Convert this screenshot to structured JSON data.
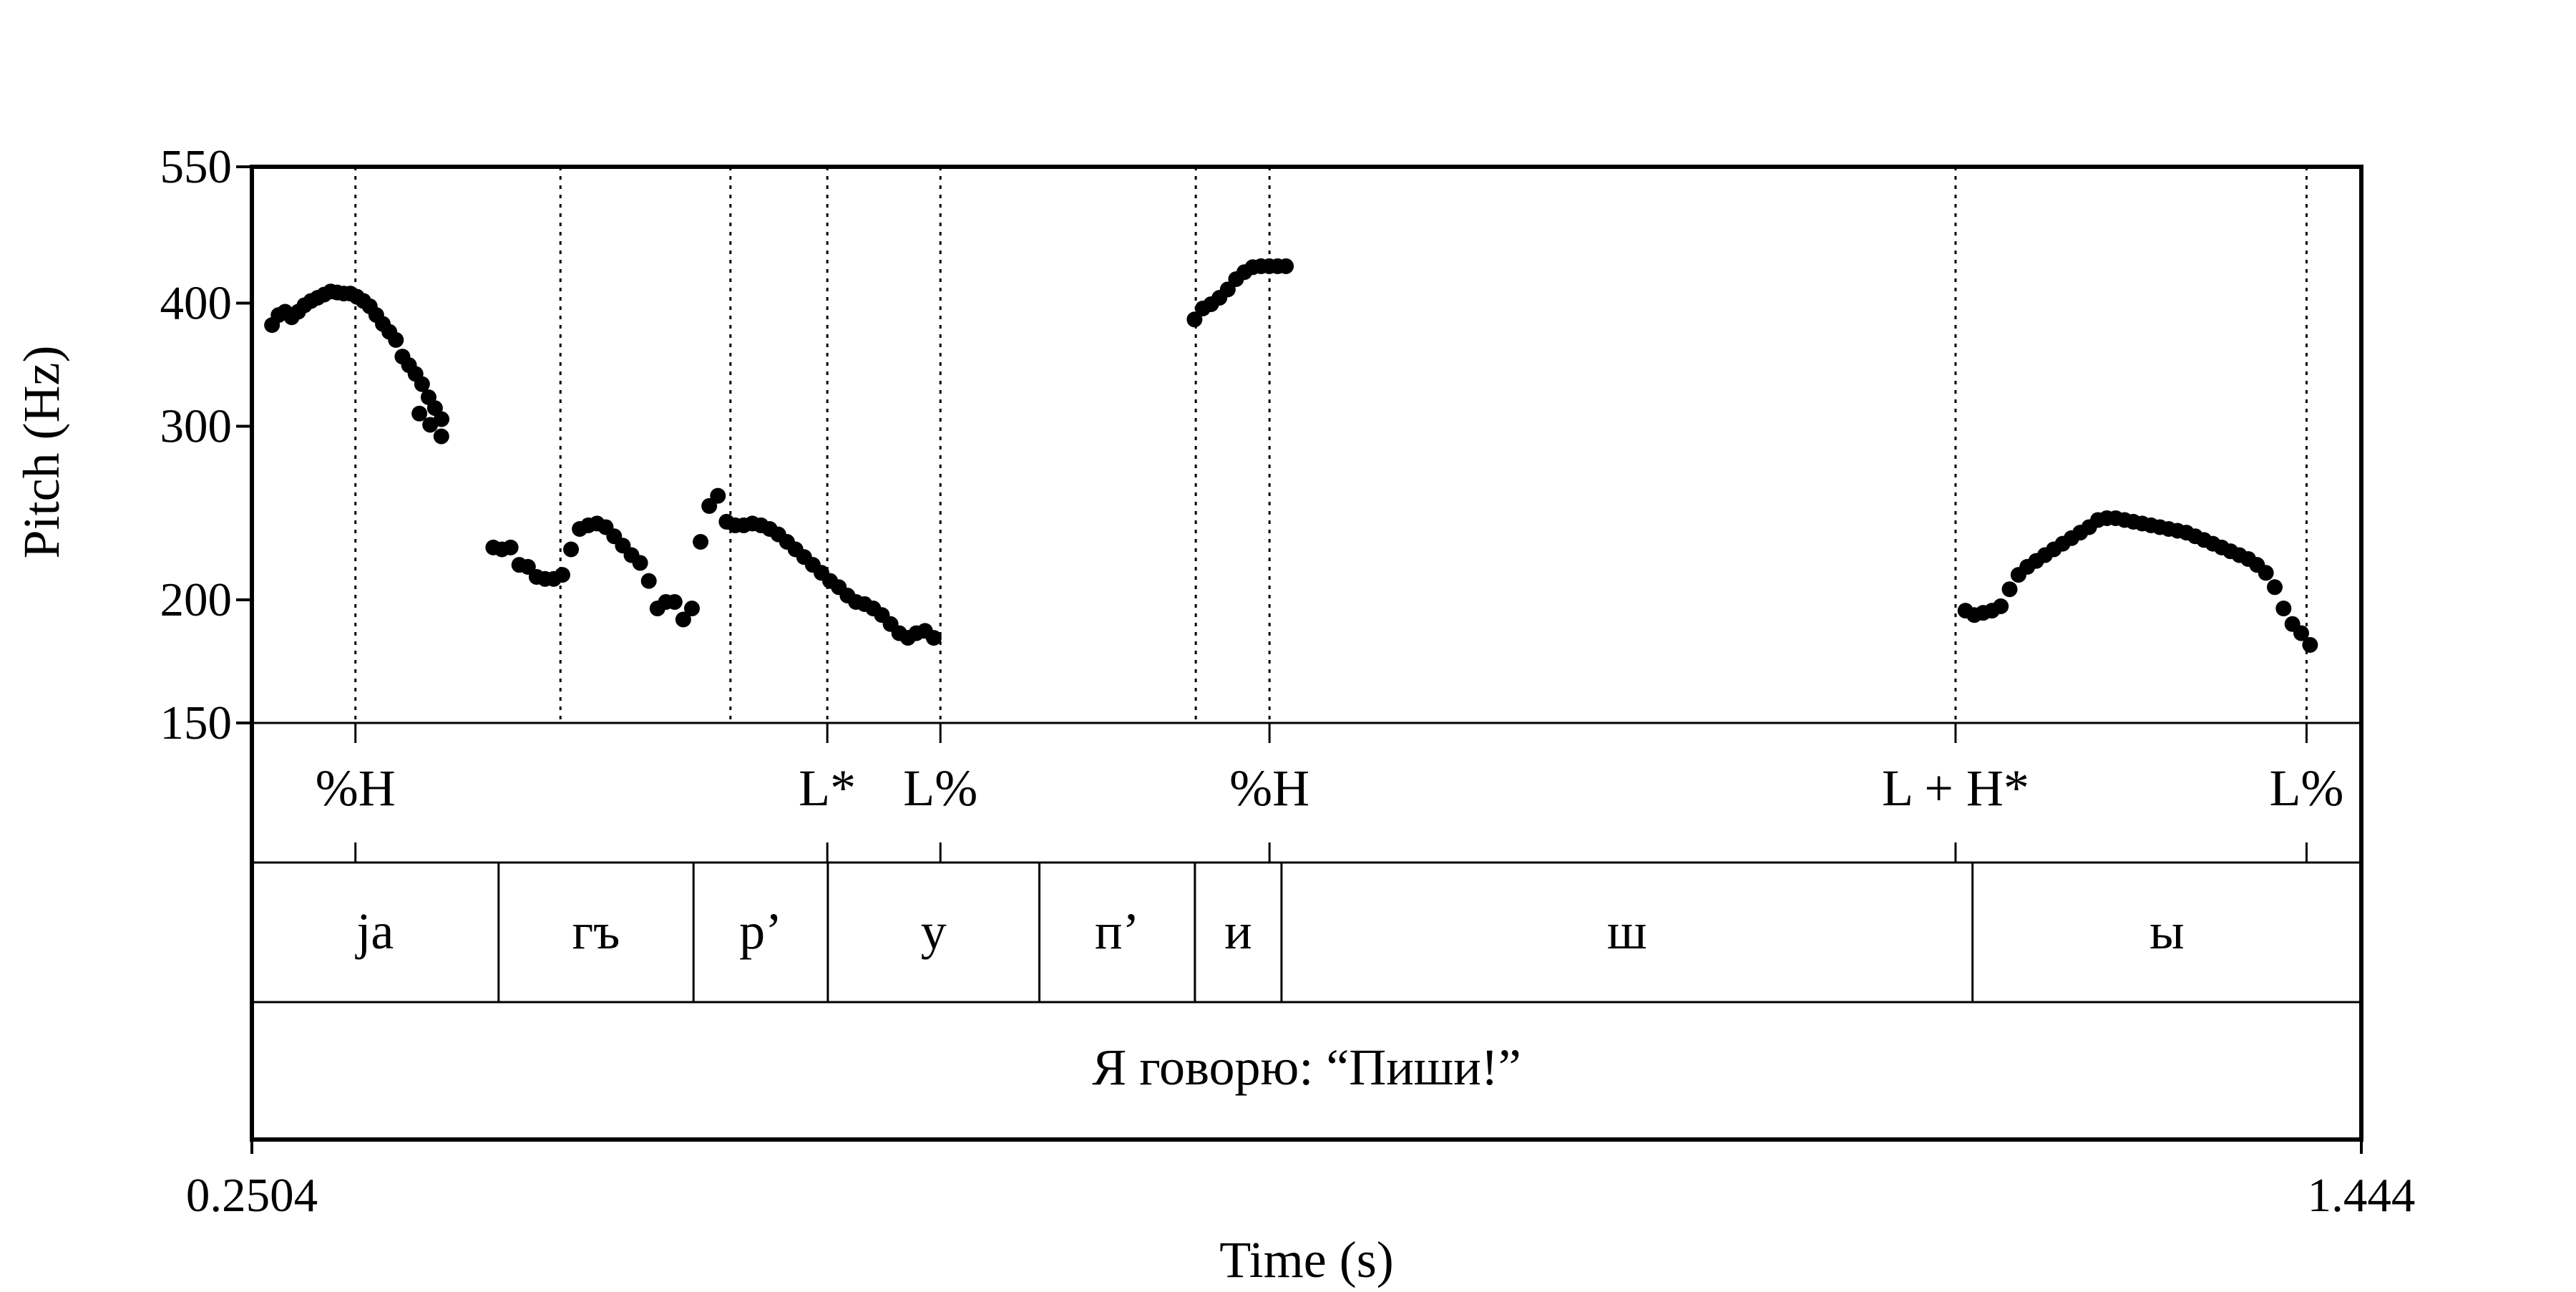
{
  "chart_data": {
    "type": "scatter",
    "xlabel": "Time (s)",
    "ylabel": "Pitch (Hz)",
    "xlim": [
      0.2504,
      1.444
    ],
    "x_tick_labels": [
      "0.2504",
      "1.444"
    ],
    "ylim": [
      150,
      550
    ],
    "y_scale": "log",
    "y_ticks": [
      150,
      200,
      300,
      400,
      550
    ],
    "y_tick_labels": [
      "150",
      "200",
      "300",
      "400",
      "550"
    ],
    "pitch_points": [
      [
        0.2618,
        380
      ],
      [
        0.2655,
        389
      ],
      [
        0.2692,
        392
      ],
      [
        0.2729,
        387
      ],
      [
        0.2766,
        392
      ],
      [
        0.2802,
        398
      ],
      [
        0.2839,
        402
      ],
      [
        0.2876,
        405
      ],
      [
        0.2913,
        408
      ],
      [
        0.295,
        411
      ],
      [
        0.2987,
        410
      ],
      [
        0.3024,
        409
      ],
      [
        0.3061,
        409
      ],
      [
        0.3098,
        406
      ],
      [
        0.3135,
        402
      ],
      [
        0.3171,
        397
      ],
      [
        0.3208,
        389
      ],
      [
        0.3245,
        381
      ],
      [
        0.3282,
        374
      ],
      [
        0.3319,
        367
      ],
      [
        0.3356,
        353
      ],
      [
        0.3393,
        346
      ],
      [
        0.343,
        339
      ],
      [
        0.3467,
        331
      ],
      [
        0.3504,
        321
      ],
      [
        0.354,
        313
      ],
      [
        0.3577,
        305
      ],
      [
        0.3452,
        309
      ],
      [
        0.3513,
        301
      ],
      [
        0.3576,
        293
      ],
      [
        0.387,
        226
      ],
      [
        0.3919,
        225
      ],
      [
        0.3968,
        226
      ],
      [
        0.4017,
        217
      ],
      [
        0.4066,
        216
      ],
      [
        0.4115,
        211
      ],
      [
        0.4163,
        210
      ],
      [
        0.4212,
        210
      ],
      [
        0.4261,
        212
      ],
      [
        0.431,
        225
      ],
      [
        0.4359,
        236
      ],
      [
        0.4408,
        238
      ],
      [
        0.4457,
        239
      ],
      [
        0.4506,
        237
      ],
      [
        0.4554,
        232
      ],
      [
        0.4603,
        227
      ],
      [
        0.4652,
        222
      ],
      [
        0.4701,
        218
      ],
      [
        0.475,
        209
      ],
      [
        0.4799,
        196
      ],
      [
        0.4847,
        199
      ],
      [
        0.4896,
        199
      ],
      [
        0.4945,
        191
      ],
      [
        0.4994,
        196
      ],
      [
        0.5043,
        229
      ],
      [
        0.5092,
        249
      ],
      [
        0.5141,
        255
      ],
      [
        0.519,
        240
      ],
      [
        0.5239,
        238
      ],
      [
        0.5287,
        238
      ],
      [
        0.5336,
        239
      ],
      [
        0.5385,
        238
      ],
      [
        0.5434,
        236
      ],
      [
        0.5483,
        233
      ],
      [
        0.5532,
        229
      ],
      [
        0.558,
        225
      ],
      [
        0.5629,
        221
      ],
      [
        0.5678,
        217
      ],
      [
        0.5727,
        213
      ],
      [
        0.5776,
        209
      ],
      [
        0.5825,
        206
      ],
      [
        0.5874,
        202
      ],
      [
        0.5922,
        199
      ],
      [
        0.5971,
        198
      ],
      [
        0.602,
        196
      ],
      [
        0.6069,
        193
      ],
      [
        0.6118,
        189
      ],
      [
        0.6167,
        185
      ],
      [
        0.6216,
        183
      ],
      [
        0.6264,
        185
      ],
      [
        0.6313,
        186
      ],
      [
        0.6362,
        183
      ],
      [
        0.7838,
        385
      ],
      [
        0.7885,
        395
      ],
      [
        0.7932,
        399
      ],
      [
        0.7979,
        405
      ],
      [
        0.8026,
        413
      ],
      [
        0.8073,
        423
      ],
      [
        0.812,
        430
      ],
      [
        0.8167,
        435
      ],
      [
        0.8214,
        436
      ],
      [
        0.8261,
        436
      ],
      [
        0.8308,
        436
      ],
      [
        0.8355,
        436
      ],
      [
        1.22,
        195
      ],
      [
        1.225,
        193
      ],
      [
        1.23,
        194
      ],
      [
        1.235,
        195
      ],
      [
        1.24,
        197
      ],
      [
        1.245,
        205
      ],
      [
        1.25,
        212
      ],
      [
        1.255,
        216
      ],
      [
        1.26,
        219
      ],
      [
        1.265,
        222
      ],
      [
        1.27,
        225
      ],
      [
        1.275,
        228
      ],
      [
        1.28,
        231
      ],
      [
        1.285,
        234
      ],
      [
        1.29,
        237
      ],
      [
        1.295,
        241
      ],
      [
        1.3,
        242
      ],
      [
        1.305,
        242
      ],
      [
        1.31,
        241
      ],
      [
        1.315,
        240
      ],
      [
        1.32,
        239
      ],
      [
        1.325,
        238
      ],
      [
        1.33,
        237
      ],
      [
        1.335,
        236
      ],
      [
        1.34,
        235
      ],
      [
        1.345,
        234
      ],
      [
        1.35,
        232
      ],
      [
        1.355,
        230
      ],
      [
        1.36,
        228
      ],
      [
        1.365,
        226
      ],
      [
        1.37,
        224
      ],
      [
        1.375,
        222
      ],
      [
        1.38,
        220
      ],
      [
        1.385,
        217
      ],
      [
        1.39,
        213
      ],
      [
        1.395,
        206
      ],
      [
        1.4,
        196
      ],
      [
        1.405,
        189
      ],
      [
        1.41,
        185
      ],
      [
        1.415,
        180
      ]
    ]
  },
  "tones": {
    "labels": [
      "%H",
      "L*",
      "L%",
      "%H",
      "L + H*",
      "L%"
    ],
    "times": [
      0.309,
      0.576,
      0.64,
      0.8262,
      1.2144,
      1.413
    ],
    "label_anchor": [
      0.309,
      0.576,
      0.64,
      0.8262,
      1.2144,
      1.413
    ]
  },
  "boundaries_dotted": [
    0.309,
    0.425,
    0.5212,
    0.576,
    0.64,
    0.7845,
    0.8262,
    1.2144,
    1.413
  ],
  "segments": {
    "labels": [
      "ja",
      "гъ",
      "р’",
      "у",
      "п’",
      "и",
      "ш",
      "ы"
    ],
    "bounds": [
      0.2504,
      0.39,
      0.5003,
      0.5763,
      0.696,
      0.784,
      0.833,
      1.224,
      1.444
    ]
  },
  "sentence": {
    "text": "Я говорю: “Пиши!”"
  }
}
